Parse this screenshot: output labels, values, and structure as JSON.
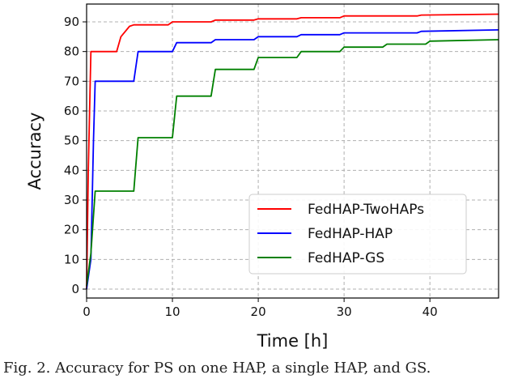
{
  "chart_data": {
    "type": "line",
    "title": "",
    "xlabel": "Time [h]",
    "ylabel": "Accuracy",
    "xlim": [
      0,
      48
    ],
    "ylim": [
      -3,
      96
    ],
    "xticks": [
      0,
      10,
      20,
      30,
      40
    ],
    "yticks": [
      0,
      10,
      20,
      30,
      40,
      50,
      60,
      70,
      80,
      90
    ],
    "grid": true,
    "legend_position": "lower-right",
    "series": [
      {
        "name": "FedHAP-TwoHAPs",
        "color": "#ff0000",
        "x": [
          0,
          0.2,
          0.5,
          3.5,
          4.0,
          5.0,
          5.5,
          6.5,
          9.5,
          10.0,
          14.5,
          15.0,
          19.5,
          20.0,
          24.5,
          25.0,
          29.5,
          30.0,
          38.5,
          39.0,
          48
        ],
        "y": [
          0,
          40,
          80,
          80,
          85,
          88.5,
          89,
          89,
          89,
          90,
          90,
          90.6,
          90.6,
          91.0,
          91.0,
          91.4,
          91.4,
          92.0,
          92.0,
          92.3,
          92.6
        ]
      },
      {
        "name": "FedHAP-HAP",
        "color": "#0000ff",
        "x": [
          0,
          0.5,
          0.8,
          1.0,
          5.5,
          6.0,
          10.0,
          10.5,
          14.5,
          15.0,
          19.5,
          20.0,
          24.5,
          25.0,
          29.5,
          30.0,
          38.5,
          39.0,
          48
        ],
        "y": [
          0,
          10,
          50,
          70,
          70,
          80,
          80,
          83,
          83,
          84,
          84,
          85,
          85,
          85.7,
          85.7,
          86.3,
          86.3,
          86.8,
          87.3
        ]
      },
      {
        "name": "FedHAP-GS",
        "color": "#008000",
        "x": [
          0,
          0.5,
          1.0,
          5.5,
          6.0,
          10.0,
          10.5,
          14.5,
          15.0,
          19.5,
          20.0,
          24.5,
          25.0,
          29.5,
          30.0,
          34.5,
          35.0,
          39.5,
          40.0,
          48
        ],
        "y": [
          1,
          12,
          33,
          33,
          51,
          51,
          65,
          65,
          74,
          74,
          78,
          78,
          80,
          80,
          81.5,
          81.5,
          82.5,
          82.5,
          83.5,
          84
        ]
      }
    ]
  },
  "caption": "Fig. 2. Accuracy for PS on one HAP, a single HAP, and GS."
}
